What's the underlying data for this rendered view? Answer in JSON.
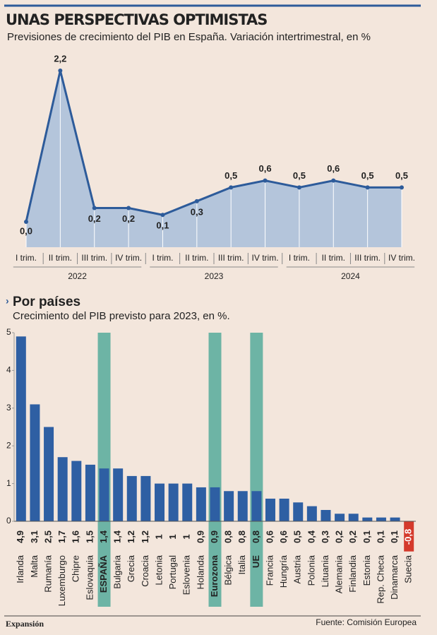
{
  "brand": "Expansión",
  "source": "Fuente: Comisión Europea",
  "chart_data": [
    {
      "type": "area",
      "title": "UNAS PERSPECTIVAS OPTIMISTAS",
      "subtitle": "Previsiones de crecimiento del PIB en España. Variación intertrimestral, en %",
      "categories": [
        "I trim.",
        "II trim.",
        "III trim.",
        "IV trim.",
        "I trim.",
        "II trim.",
        "III trim.",
        "IV trim.",
        "I trim.",
        "II trim.",
        "III trim.",
        "IV trim."
      ],
      "x_groups": [
        "2022",
        "2023",
        "2024"
      ],
      "values": [
        0,
        2.2,
        0.2,
        0.2,
        0.1,
        0.3,
        0.5,
        0.6,
        0.5,
        0.6,
        0.5,
        0.5
      ],
      "value_labels": [
        "0,0",
        "2,2",
        "0,2",
        "0,2",
        "0,1",
        "0,3",
        "0,5",
        "0,6",
        "0,5",
        "0,6",
        "0,5",
        "0,5"
      ],
      "color": "#2d5b9a",
      "fill": "#b4c5db"
    },
    {
      "type": "bar",
      "title": "Por países",
      "subtitle": "Crecimiento del PIB previsto para 2023, en %.",
      "categories": [
        "Irlanda",
        "Malta",
        "Rumanía",
        "Luxemburgo",
        "Chipre",
        "Eslovaquia",
        "ESPAÑA",
        "Bulgaria",
        "Grecia",
        "Croacia",
        "Letonia",
        "Portugal",
        "Eslovenia",
        "Holanda",
        "Eurozona",
        "Bélgica",
        "Italia",
        "UE",
        "Francia",
        "Hungría",
        "Austria",
        "Polonia",
        "Lituania",
        "Alemania",
        "Finlandia",
        "Estonia",
        "Rep. Checa",
        "Dinamarca",
        "Suecia"
      ],
      "values": [
        4.9,
        3.1,
        2.5,
        1.7,
        1.6,
        1.5,
        1.4,
        1.4,
        1.2,
        1.2,
        1,
        1,
        1,
        0.9,
        0.9,
        0.8,
        0.8,
        0.8,
        0.6,
        0.6,
        0.5,
        0.4,
        0.3,
        0.2,
        0.2,
        0.1,
        0.1,
        0.1,
        -0.8
      ],
      "value_labels": [
        "4,9",
        "3,1",
        "2,5",
        "1,7",
        "1,6",
        "1,5",
        "1,4",
        "1,4",
        "1,2",
        "1,2",
        "1",
        "1",
        "1",
        "0,9",
        "0,9",
        "0,8",
        "0,8",
        "0,8",
        "0,6",
        "0,6",
        "0,5",
        "0,4",
        "0,3",
        "0,2",
        "0,2",
        "0,1",
        "0,1",
        "0,1",
        "-0,8"
      ],
      "color": "#2e5fa3",
      "negative_color": "#d43a2c",
      "highlight": [
        6,
        14,
        17
      ],
      "highlight_color": "#6db4a5",
      "ylim": [
        0,
        5
      ],
      "yticks": [
        0,
        1,
        2,
        3,
        4,
        5
      ],
      "grid": false
    }
  ]
}
